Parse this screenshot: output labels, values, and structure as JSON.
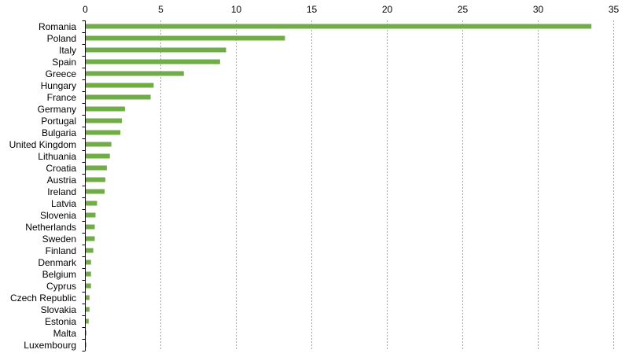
{
  "chart_data": {
    "type": "bar",
    "orientation": "horizontal",
    "title": "",
    "xlabel": "",
    "ylabel": "",
    "xlim": [
      0,
      35
    ],
    "x_ticks": [
      0,
      5,
      10,
      15,
      20,
      25,
      30,
      35
    ],
    "x_axis_position": "top",
    "grid": "vertical dashed",
    "bar_color": "#70ad47",
    "categories": [
      "Romania",
      "Poland",
      "Italy",
      "Spain",
      "Greece",
      "Hungary",
      "France",
      "Germany",
      "Portugal",
      "Bulgaria",
      "United Kingdom",
      "Lithuania",
      "Croatia",
      "Austria",
      "Ireland",
      "Latvia",
      "Slovenia",
      "Netherlands",
      "Sweden",
      "Finland",
      "Denmark",
      "Belgium",
      "Cyprus",
      "Czech Republic",
      "Slovakia",
      "Estonia",
      "Malta",
      "Luxembourg"
    ],
    "values": [
      33.5,
      13.2,
      9.3,
      8.9,
      6.5,
      4.5,
      4.3,
      2.6,
      2.4,
      2.3,
      1.7,
      1.6,
      1.4,
      1.3,
      1.25,
      0.75,
      0.65,
      0.6,
      0.6,
      0.5,
      0.35,
      0.35,
      0.35,
      0.25,
      0.25,
      0.2,
      0.05,
      0.02
    ]
  }
}
